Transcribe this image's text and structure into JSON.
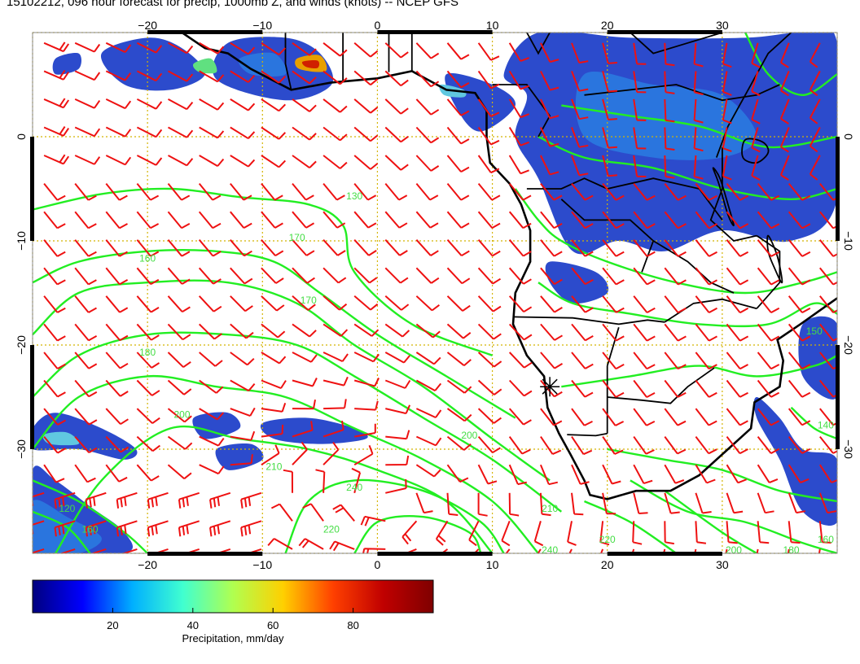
{
  "title": "15102212, 096 hour forecast for precip, 1000mb Z, and winds (knots) -- NCEP GFS",
  "map": {
    "lon_range": [
      -30,
      40
    ],
    "lat_range": [
      -40,
      10
    ],
    "lon_ticks": [
      {
        "value": -20,
        "label": "−20"
      },
      {
        "value": -10,
        "label": "−10"
      },
      {
        "value": 0,
        "label": "0"
      },
      {
        "value": 10,
        "label": "10"
      },
      {
        "value": 20,
        "label": "20"
      },
      {
        "value": 30,
        "label": "30"
      }
    ],
    "lat_ticks": [
      {
        "value": 0,
        "label": "0"
      },
      {
        "value": -10,
        "label": "−10"
      },
      {
        "value": -20,
        "label": "−20"
      },
      {
        "value": -30,
        "label": "−30"
      }
    ],
    "grid": true,
    "colors": {
      "grid": "#d4b400",
      "wind_barbs": "#ee1111",
      "height_contours": "#22ee22",
      "coastlines": "#000000",
      "frame": "#888888"
    },
    "contour_labels": [
      {
        "lon": -2,
        "lat": -6,
        "text": "130"
      },
      {
        "lon": -20,
        "lat": -12,
        "text": "160"
      },
      {
        "lon": -7,
        "lat": -10,
        "text": "170"
      },
      {
        "lon": -6,
        "lat": -16,
        "text": "170"
      },
      {
        "lon": -20,
        "lat": -21,
        "text": "180"
      },
      {
        "lon": -17,
        "lat": -27,
        "text": "200"
      },
      {
        "lon": -9,
        "lat": -32,
        "text": "210"
      },
      {
        "lon": 8,
        "lat": -29,
        "text": "200"
      },
      {
        "lon": -2,
        "lat": -34,
        "text": "240"
      },
      {
        "lon": -4,
        "lat": -38,
        "text": "220"
      },
      {
        "lon": 15,
        "lat": -36,
        "text": "210"
      },
      {
        "lon": 20,
        "lat": -39,
        "text": "220"
      },
      {
        "lon": 15,
        "lat": -40,
        "text": "240"
      },
      {
        "lon": 31,
        "lat": -40,
        "text": "200"
      },
      {
        "lon": 36,
        "lat": -40,
        "text": "180"
      },
      {
        "lon": 39,
        "lat": -39,
        "text": "160"
      },
      {
        "lon": 39,
        "lat": -28,
        "text": "140"
      },
      {
        "lon": 38,
        "lat": -19,
        "text": "150"
      },
      {
        "lon": -27,
        "lat": -36,
        "text": "120"
      },
      {
        "lon": -25,
        "lat": -38,
        "text": "160"
      }
    ],
    "marker": {
      "lon": 15,
      "lat": -24
    }
  },
  "colorbar": {
    "ticks": [
      20,
      40,
      60,
      80
    ],
    "labels": [
      "20",
      "40",
      "60",
      "80"
    ],
    "range": [
      0,
      100
    ],
    "label": "Precipitation, mm/day",
    "colors": [
      "#00007f",
      "#0000ff",
      "#00b0ff",
      "#40ffd0",
      "#b0ff50",
      "#ffd000",
      "#ff4000",
      "#c00000",
      "#7f0000"
    ]
  }
}
